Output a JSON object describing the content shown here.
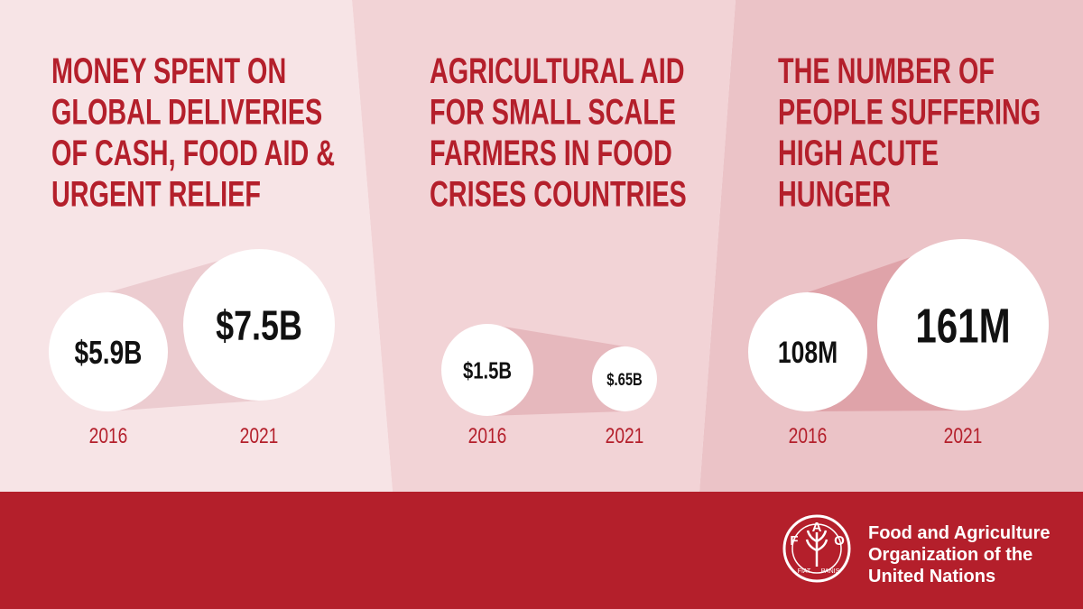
{
  "panels": [
    {
      "title": [
        "MONEY SPENT ON",
        "GLOBAL DELIVERIES",
        "OF CASH, FOOD AID &",
        "URGENT RELIEF"
      ],
      "items": [
        {
          "value": "$5.9B",
          "year": "2016"
        },
        {
          "value": "$7.5B",
          "year": "2021"
        }
      ]
    },
    {
      "title": [
        "AGRICULTURAL AID",
        "FOR SMALL SCALE",
        "FARMERS IN FOOD",
        "CRISES COUNTRIES"
      ],
      "items": [
        {
          "value": "$1.5B",
          "year": "2016"
        },
        {
          "value": "$.65B",
          "year": "2021"
        }
      ]
    },
    {
      "title": [
        "THE NUMBER OF",
        "PEOPLE SUFFERING",
        "HIGH ACUTE",
        "HUNGER"
      ],
      "items": [
        {
          "value": "108M",
          "year": "2016"
        },
        {
          "value": "161M",
          "year": "2021"
        }
      ]
    }
  ],
  "footer": {
    "organization": [
      "Food and Agriculture",
      "Organization of the",
      "United Nations"
    ],
    "logo": {
      "letters": [
        "F",
        "A",
        "O"
      ],
      "motto": [
        "FIAT",
        "PANIS"
      ]
    }
  }
}
